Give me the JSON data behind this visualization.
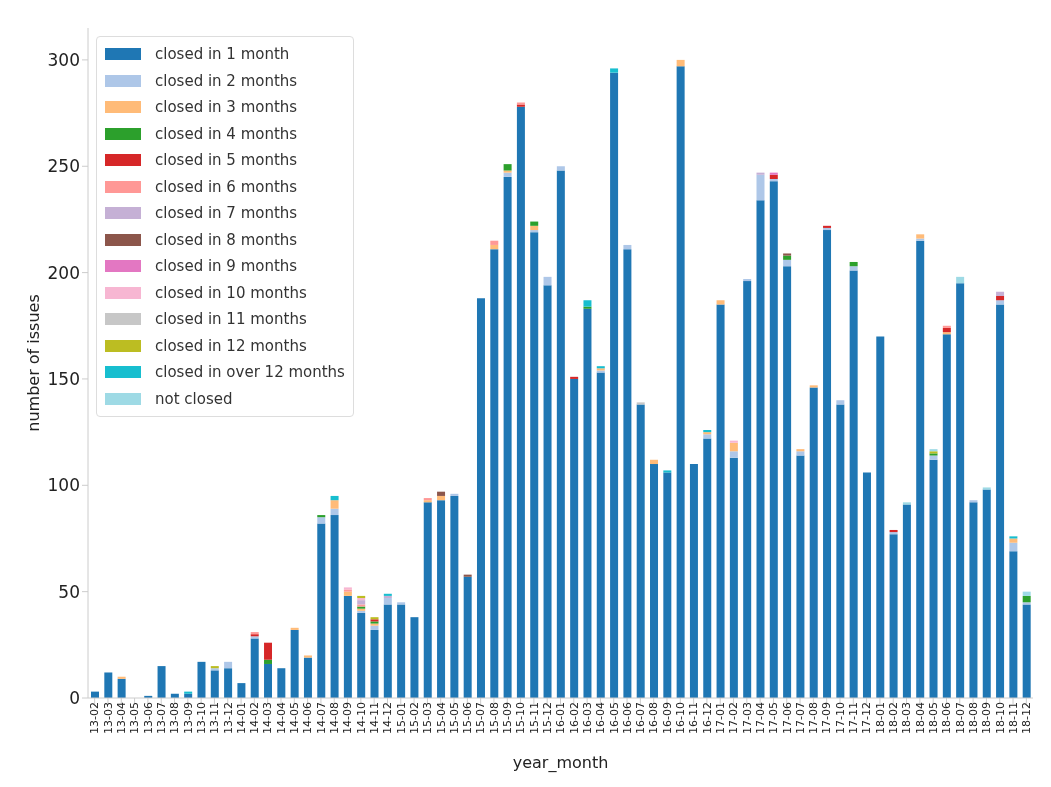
{
  "chart_data": {
    "type": "bar",
    "stacked": true,
    "xlabel": "year_month",
    "ylabel": "number of issues",
    "legend": "top left",
    "grid": false,
    "categories": [
      "13-02",
      "13-03",
      "13-04",
      "13-05",
      "13-06",
      "13-07",
      "13-08",
      "13-09",
      "13-10",
      "13-11",
      "13-12",
      "14-01",
      "14-02",
      "14-03",
      "14-04",
      "14-05",
      "14-06",
      "14-07",
      "14-08",
      "14-09",
      "14-10",
      "14-11",
      "14-12",
      "15-01",
      "15-02",
      "15-03",
      "15-04",
      "15-05",
      "15-06",
      "15-07",
      "15-08",
      "15-09",
      "15-10",
      "15-11",
      "15-12",
      "16-01",
      "16-02",
      "16-03",
      "16-04",
      "16-05",
      "16-06",
      "16-07",
      "16-08",
      "16-09",
      "16-10",
      "16-11",
      "16-12",
      "17-01",
      "17-02",
      "17-03",
      "17-04",
      "17-05",
      "17-06",
      "17-07",
      "17-08",
      "17-09",
      "17-10",
      "17-11",
      "17-12",
      "18-01",
      "18-02",
      "18-03",
      "18-04",
      "18-05",
      "18-06",
      "18-07",
      "18-08",
      "18-09",
      "18-10",
      "18-11",
      "18-12"
    ],
    "ylim": [
      0,
      315
    ],
    "yticks": [
      0,
      50,
      100,
      150,
      200,
      250,
      300
    ],
    "series": [
      {
        "name": "closed in 1 month",
        "color": "#1f77b4",
        "values": [
          3,
          12,
          9,
          0,
          1,
          15,
          2,
          2,
          17,
          13,
          14,
          7,
          28,
          16,
          14,
          32,
          19,
          82,
          86,
          48,
          40,
          32,
          44,
          44,
          38,
          92,
          93,
          95,
          57,
          188,
          211,
          245,
          278,
          219,
          194,
          248,
          150,
          183,
          153,
          294,
          211,
          138,
          110,
          106,
          297,
          110,
          122,
          185,
          113,
          196,
          234,
          243,
          203,
          114,
          146,
          220,
          138,
          201,
          106,
          170,
          77,
          91,
          215,
          112,
          171,
          195,
          92,
          98,
          185,
          69,
          44
        ]
      },
      {
        "name": "closed in 2 months",
        "color": "#aec7e8",
        "values": [
          0,
          0,
          0,
          0,
          0,
          0,
          0,
          0,
          0,
          1,
          3,
          0,
          1,
          0,
          0,
          0,
          0,
          3,
          3,
          0,
          1,
          2,
          3,
          1,
          0,
          0,
          0,
          1,
          0,
          0,
          0,
          2,
          0,
          1,
          4,
          2,
          0,
          0,
          1,
          0,
          2,
          0,
          0,
          0,
          0,
          0,
          2,
          0,
          3,
          1,
          12,
          1,
          3,
          2,
          0,
          1,
          2,
          2,
          0,
          0,
          1,
          0,
          1,
          2,
          0,
          0,
          1,
          0,
          2,
          4,
          1
        ]
      },
      {
        "name": "closed in 3 months",
        "color": "#ffbb78",
        "values": [
          0,
          0,
          1,
          0,
          0,
          0,
          0,
          0,
          0,
          0,
          0,
          0,
          0,
          0,
          0,
          1,
          1,
          0,
          4,
          2,
          1,
          1,
          0,
          0,
          0,
          1,
          2,
          0,
          0,
          0,
          2,
          1,
          0,
          2,
          0,
          0,
          0,
          0,
          1,
          0,
          0,
          0,
          2,
          0,
          3,
          0,
          1,
          2,
          4,
          0,
          0,
          0,
          0,
          1,
          1,
          0,
          0,
          0,
          0,
          0,
          0,
          0,
          2,
          0,
          1,
          0,
          0,
          0,
          0,
          2,
          0
        ]
      },
      {
        "name": "closed in 4 months",
        "color": "#2ca02c",
        "values": [
          0,
          0,
          0,
          0,
          0,
          0,
          0,
          0,
          0,
          0,
          0,
          0,
          0,
          2,
          0,
          0,
          0,
          1,
          0,
          0,
          1,
          1,
          0,
          0,
          0,
          0,
          0,
          0,
          0,
          0,
          0,
          3,
          0,
          2,
          0,
          0,
          0,
          1,
          0,
          0,
          0,
          0,
          0,
          0,
          0,
          0,
          0,
          0,
          0,
          0,
          0,
          0,
          2,
          0,
          0,
          0,
          0,
          2,
          0,
          0,
          0,
          0,
          0,
          1,
          0,
          0,
          0,
          0,
          0,
          0,
          3
        ]
      },
      {
        "name": "closed in 5 months",
        "color": "#d62728",
        "values": [
          0,
          0,
          0,
          0,
          0,
          0,
          0,
          0,
          0,
          0,
          0,
          0,
          1,
          8,
          0,
          0,
          0,
          0,
          0,
          0,
          0,
          1,
          0,
          0,
          0,
          0,
          0,
          0,
          0,
          0,
          0,
          0,
          1,
          0,
          0,
          0,
          1,
          0,
          0,
          0,
          0,
          0,
          0,
          0,
          0,
          0,
          0,
          0,
          0,
          0,
          0,
          2,
          0,
          0,
          0,
          1,
          0,
          0,
          0,
          0,
          1,
          0,
          0,
          0,
          2,
          0,
          0,
          0,
          2,
          0,
          0
        ]
      },
      {
        "name": "closed in 6 months",
        "color": "#ff9896",
        "values": [
          0,
          0,
          0,
          0,
          0,
          0,
          0,
          0,
          0,
          0,
          0,
          0,
          1,
          0,
          0,
          0,
          0,
          0,
          0,
          1,
          1,
          0,
          0,
          0,
          0,
          1,
          0,
          0,
          0,
          0,
          2,
          0,
          1,
          0,
          0,
          0,
          0,
          0,
          0,
          0,
          0,
          0,
          0,
          0,
          0,
          0,
          0,
          0,
          0,
          0,
          0,
          0,
          0,
          0,
          0,
          0,
          0,
          0,
          0,
          0,
          0,
          0,
          0,
          0,
          1,
          0,
          0,
          0,
          0,
          0,
          0
        ]
      },
      {
        "name": "closed in 7 months",
        "color": "#c5b0d5",
        "values": [
          0,
          0,
          0,
          0,
          0,
          0,
          0,
          0,
          0,
          0,
          0,
          0,
          0,
          0,
          0,
          0,
          0,
          0,
          0,
          0,
          2,
          0,
          1,
          0,
          0,
          0,
          0,
          0,
          0,
          0,
          0,
          0,
          0,
          0,
          0,
          0,
          0,
          0,
          0,
          0,
          0,
          0,
          0,
          0,
          0,
          0,
          0,
          0,
          0,
          0,
          1,
          0,
          0,
          0,
          0,
          0,
          0,
          0,
          0,
          0,
          0,
          0,
          0,
          0,
          0,
          0,
          0,
          0,
          2,
          0,
          0
        ]
      },
      {
        "name": "closed in 8 months",
        "color": "#8c564b",
        "values": [
          0,
          0,
          0,
          0,
          0,
          0,
          0,
          0,
          0,
          0,
          0,
          0,
          0,
          0,
          0,
          0,
          0,
          0,
          0,
          0,
          0,
          0,
          0,
          0,
          0,
          0,
          2,
          0,
          1,
          0,
          0,
          0,
          0,
          0,
          0,
          0,
          0,
          0,
          0,
          0,
          0,
          0,
          0,
          0,
          0,
          0,
          0,
          0,
          0,
          0,
          0,
          0,
          1,
          0,
          0,
          0,
          0,
          0,
          0,
          0,
          0,
          0,
          0,
          0,
          0,
          0,
          0,
          0,
          0,
          0,
          0
        ]
      },
      {
        "name": "closed in 9 months",
        "color": "#e377c2",
        "values": [
          0,
          0,
          0,
          0,
          0,
          0,
          0,
          0,
          0,
          0,
          0,
          0,
          0,
          0,
          0,
          0,
          0,
          0,
          0,
          0,
          0,
          0,
          0,
          0,
          0,
          0,
          0,
          0,
          0,
          0,
          0,
          0,
          0,
          0,
          0,
          0,
          0,
          0,
          0,
          0,
          0,
          0,
          0,
          0,
          0,
          0,
          0,
          0,
          0,
          0,
          0,
          1,
          0,
          0,
          0,
          0,
          0,
          0,
          0,
          0,
          0,
          0,
          0,
          0,
          0,
          0,
          0,
          0,
          0,
          0,
          0
        ]
      },
      {
        "name": "closed in 10 months",
        "color": "#f7b6d2",
        "values": [
          0,
          0,
          0,
          0,
          0,
          0,
          0,
          0,
          0,
          0,
          0,
          0,
          0,
          0,
          0,
          0,
          0,
          0,
          0,
          1,
          1,
          0,
          0,
          0,
          0,
          0,
          0,
          0,
          0,
          0,
          0,
          0,
          0,
          0,
          0,
          0,
          0,
          0,
          0,
          0,
          0,
          0,
          0,
          0,
          0,
          0,
          0,
          0,
          1,
          0,
          0,
          0,
          0,
          0,
          0,
          0,
          0,
          0,
          0,
          0,
          0,
          0,
          0,
          0,
          0,
          0,
          0,
          0,
          0,
          0,
          0
        ]
      },
      {
        "name": "closed in 11 months",
        "color": "#c7c7c7",
        "values": [
          0,
          0,
          0,
          0,
          0,
          0,
          0,
          0,
          0,
          0,
          0,
          0,
          0,
          0,
          0,
          0,
          0,
          0,
          0,
          0,
          0,
          0,
          0,
          0,
          0,
          0,
          0,
          0,
          0,
          0,
          0,
          0,
          0,
          0,
          0,
          0,
          0,
          0,
          0,
          0,
          0,
          1,
          0,
          0,
          0,
          0,
          0,
          0,
          0,
          0,
          0,
          0,
          0,
          0,
          0,
          0,
          0,
          0,
          0,
          0,
          0,
          0,
          0,
          0,
          0,
          0,
          0,
          0,
          0,
          0,
          0
        ]
      },
      {
        "name": "closed in 12 months",
        "color": "#bcbd22",
        "values": [
          0,
          0,
          0,
          0,
          0,
          0,
          0,
          0,
          0,
          1,
          0,
          0,
          0,
          0,
          0,
          0,
          0,
          0,
          0,
          0,
          1,
          1,
          0,
          0,
          0,
          0,
          0,
          0,
          0,
          0,
          0,
          0,
          0,
          0,
          0,
          0,
          0,
          0,
          0,
          0,
          0,
          0,
          0,
          0,
          0,
          0,
          0,
          0,
          0,
          0,
          0,
          0,
          0,
          0,
          0,
          0,
          0,
          0,
          0,
          0,
          0,
          0,
          0,
          1,
          0,
          0,
          0,
          0,
          0,
          0,
          0
        ]
      },
      {
        "name": "closed in over 12 months",
        "color": "#17becf",
        "values": [
          0,
          0,
          0,
          0,
          0,
          0,
          0,
          1,
          0,
          0,
          0,
          0,
          0,
          0,
          0,
          0,
          0,
          0,
          2,
          0,
          0,
          0,
          1,
          0,
          0,
          0,
          0,
          0,
          0,
          0,
          0,
          0,
          0,
          0,
          0,
          0,
          0,
          3,
          1,
          2,
          0,
          0,
          0,
          1,
          0,
          0,
          1,
          0,
          0,
          0,
          0,
          0,
          0,
          0,
          0,
          0,
          0,
          0,
          0,
          0,
          0,
          0,
          0,
          0,
          0,
          0,
          0,
          0,
          0,
          1,
          0
        ]
      },
      {
        "name": "not closed",
        "color": "#9edae5",
        "values": [
          0,
          0,
          0,
          0,
          0,
          0,
          0,
          0,
          0,
          0,
          0,
          0,
          0,
          0,
          0,
          0,
          0,
          0,
          0,
          0,
          0,
          0,
          0,
          0,
          0,
          0,
          0,
          0,
          0,
          0,
          0,
          0,
          0,
          0,
          0,
          0,
          0,
          0,
          0,
          0,
          0,
          0,
          0,
          0,
          0,
          0,
          0,
          0,
          0,
          0,
          0,
          0,
          0,
          0,
          0,
          0,
          0,
          0,
          0,
          0,
          0,
          1,
          0,
          1,
          0,
          3,
          0,
          1,
          0,
          0,
          2
        ]
      }
    ]
  }
}
